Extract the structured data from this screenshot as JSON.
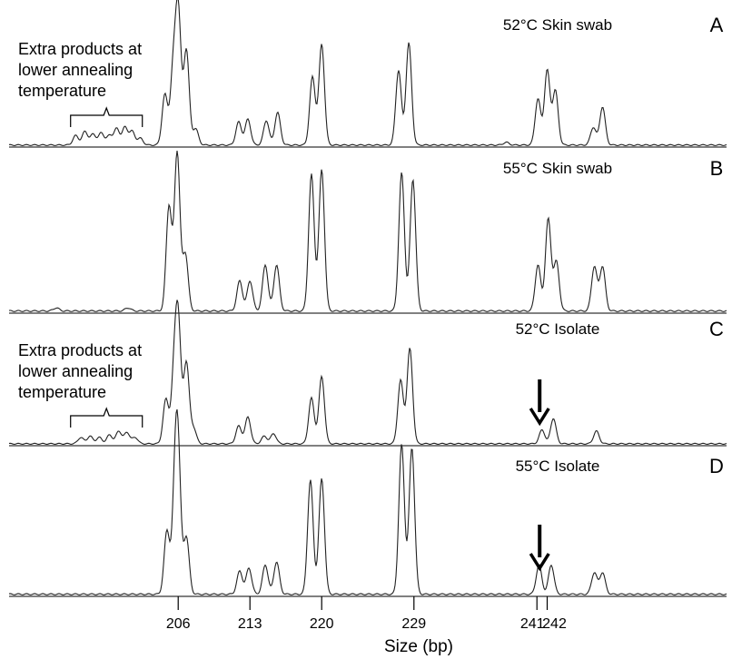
{
  "chart_data": {
    "type": "line",
    "xlabel": "Size (bp)",
    "x_ticks": [
      {
        "value": 206,
        "label": "206"
      },
      {
        "value": 213,
        "label": "213"
      },
      {
        "value": 220,
        "label": "220"
      },
      {
        "value": 229,
        "label": "229"
      },
      {
        "value": 241,
        "label": "241"
      },
      {
        "value": 242,
        "label": "242"
      }
    ],
    "xlim": [
      189.5,
      259.5
    ],
    "panels": [
      {
        "letter": "A",
        "title": "52°C Skin swab",
        "annotation": [
          "Extra products at",
          "lower annealing",
          "temperature"
        ],
        "bracket": [
          195.5,
          202.5
        ],
        "arrow_at": null,
        "peaks": [
          [
            196.0,
            0.07
          ],
          [
            196.9,
            0.1
          ],
          [
            197.7,
            0.08
          ],
          [
            198.5,
            0.09
          ],
          [
            199.3,
            0.07
          ],
          [
            200.0,
            0.12
          ],
          [
            200.8,
            0.13
          ],
          [
            201.5,
            0.1
          ],
          [
            202.3,
            0.05
          ],
          [
            204.7,
            0.37
          ],
          [
            205.5,
            0.52
          ],
          [
            206.0,
            0.98
          ],
          [
            206.8,
            0.7
          ],
          [
            207.7,
            0.12
          ],
          [
            211.9,
            0.17
          ],
          [
            212.8,
            0.19
          ],
          [
            214.6,
            0.18
          ],
          [
            215.7,
            0.24
          ],
          [
            219.1,
            0.5
          ],
          [
            220.0,
            0.74
          ],
          [
            227.5,
            0.55
          ],
          [
            228.5,
            0.75
          ],
          [
            238.0,
            0.02
          ],
          [
            241.1,
            0.34
          ],
          [
            242.0,
            0.55
          ],
          [
            242.8,
            0.4
          ],
          [
            246.5,
            0.13
          ],
          [
            247.4,
            0.28
          ]
        ]
      },
      {
        "letter": "B",
        "title": "55°C Skin swab",
        "annotation": null,
        "bracket": null,
        "arrow_at": null,
        "peaks": [
          [
            194.1,
            0.02
          ],
          [
            201.1,
            0.02
          ],
          [
            205.1,
            0.66
          ],
          [
            205.9,
            1.0
          ],
          [
            206.7,
            0.36
          ],
          [
            212.0,
            0.19
          ],
          [
            213.0,
            0.19
          ],
          [
            214.5,
            0.29
          ],
          [
            215.6,
            0.29
          ],
          [
            219.0,
            0.86
          ],
          [
            220.0,
            0.89
          ],
          [
            227.8,
            0.87
          ],
          [
            228.9,
            0.83
          ],
          [
            241.1,
            0.29
          ],
          [
            242.1,
            0.58
          ],
          [
            242.9,
            0.31
          ],
          [
            246.6,
            0.28
          ],
          [
            247.4,
            0.28
          ]
        ]
      },
      {
        "letter": "C",
        "title": "52°C Isolate",
        "annotation": [
          "Extra products at",
          "lower annealing",
          "temperature"
        ],
        "bracket": [
          195.5,
          202.5
        ],
        "arrow_at": 241.0,
        "peaks": [
          [
            196.5,
            0.05
          ],
          [
            197.4,
            0.06
          ],
          [
            198.3,
            0.05
          ],
          [
            199.3,
            0.07
          ],
          [
            200.2,
            0.1
          ],
          [
            201.0,
            0.09
          ],
          [
            201.8,
            0.05
          ],
          [
            204.8,
            0.35
          ],
          [
            205.6,
            0.51
          ],
          [
            206.0,
            0.92
          ],
          [
            206.8,
            0.64
          ],
          [
            207.5,
            0.12
          ],
          [
            211.9,
            0.14
          ],
          [
            212.8,
            0.21
          ],
          [
            214.4,
            0.06
          ],
          [
            215.3,
            0.08
          ],
          [
            219.0,
            0.36
          ],
          [
            220.0,
            0.53
          ],
          [
            227.7,
            0.5
          ],
          [
            228.6,
            0.75
          ],
          [
            241.5,
            0.11
          ],
          [
            242.6,
            0.2
          ],
          [
            246.8,
            0.1
          ]
        ]
      },
      {
        "letter": "D",
        "title": "55°C Isolate",
        "annotation": null,
        "bracket": null,
        "arrow_at": 241.0,
        "peaks": [
          [
            204.9,
            0.41
          ],
          [
            205.7,
            0.63
          ],
          [
            206.0,
            0.77
          ],
          [
            206.8,
            0.37
          ],
          [
            212.0,
            0.15
          ],
          [
            212.9,
            0.17
          ],
          [
            214.5,
            0.19
          ],
          [
            215.6,
            0.21
          ],
          [
            218.9,
            0.74
          ],
          [
            220.0,
            0.75
          ],
          [
            227.8,
            0.97
          ],
          [
            228.8,
            0.95
          ],
          [
            241.2,
            0.19
          ],
          [
            242.4,
            0.19
          ],
          [
            246.6,
            0.14
          ],
          [
            247.4,
            0.14
          ]
        ]
      }
    ]
  }
}
